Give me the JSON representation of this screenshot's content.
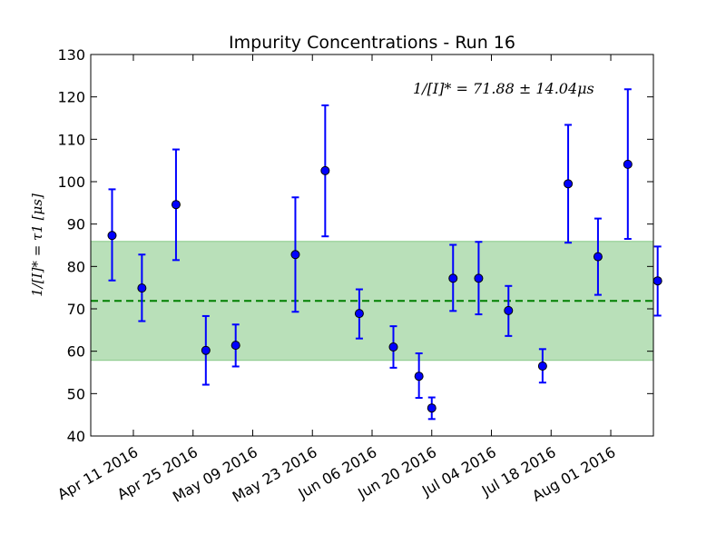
{
  "chart_data": {
    "type": "scatter",
    "title": "Impurity Concentrations - Run 16",
    "ylabel": "1/[I]* = τ1 [μs]",
    "xlabel": "",
    "ylim": [
      40,
      130
    ],
    "xlim": [
      "2016-04-01",
      "2016-08-11"
    ],
    "yticks": [
      40,
      50,
      60,
      70,
      80,
      90,
      100,
      110,
      120,
      130
    ],
    "xticks": [
      {
        "date": "2016-04-11",
        "label": "Apr 11 2016"
      },
      {
        "date": "2016-04-25",
        "label": "Apr 25 2016"
      },
      {
        "date": "2016-05-09",
        "label": "May 09 2016"
      },
      {
        "date": "2016-05-23",
        "label": "May 23 2016"
      },
      {
        "date": "2016-06-06",
        "label": "Jun 06 2016"
      },
      {
        "date": "2016-06-20",
        "label": "Jun 20 2016"
      },
      {
        "date": "2016-07-04",
        "label": "Jul 04 2016"
      },
      {
        "date": "2016-07-18",
        "label": "Jul 18 2016"
      },
      {
        "date": "2016-08-01",
        "label": "Aug 01 2016"
      }
    ],
    "points": [
      {
        "date": "2016-04-06",
        "y": 87.3,
        "lo": 76.7,
        "hi": 98.2
      },
      {
        "date": "2016-04-13",
        "y": 74.9,
        "lo": 67.1,
        "hi": 82.8
      },
      {
        "date": "2016-04-21",
        "y": 94.6,
        "lo": 81.5,
        "hi": 107.6
      },
      {
        "date": "2016-04-28",
        "y": 60.2,
        "lo": 52.1,
        "hi": 68.3
      },
      {
        "date": "2016-05-05",
        "y": 61.4,
        "lo": 56.4,
        "hi": 66.3
      },
      {
        "date": "2016-05-19",
        "y": 82.8,
        "lo": 69.3,
        "hi": 96.3
      },
      {
        "date": "2016-05-26",
        "y": 102.6,
        "lo": 87.1,
        "hi": 118.0
      },
      {
        "date": "2016-06-03",
        "y": 68.9,
        "lo": 63.0,
        "hi": 74.6
      },
      {
        "date": "2016-06-11",
        "y": 61.0,
        "lo": 56.1,
        "hi": 65.9
      },
      {
        "date": "2016-06-17",
        "y": 54.1,
        "lo": 49.0,
        "hi": 59.5
      },
      {
        "date": "2016-06-20",
        "y": 46.6,
        "lo": 44.0,
        "hi": 49.1
      },
      {
        "date": "2016-06-25",
        "y": 77.2,
        "lo": 69.5,
        "hi": 85.1
      },
      {
        "date": "2016-07-01",
        "y": 77.2,
        "lo": 68.7,
        "hi": 85.8
      },
      {
        "date": "2016-07-08",
        "y": 69.6,
        "lo": 63.6,
        "hi": 75.4
      },
      {
        "date": "2016-07-16",
        "y": 56.5,
        "lo": 52.6,
        "hi": 60.5
      },
      {
        "date": "2016-07-22",
        "y": 99.5,
        "lo": 85.6,
        "hi": 113.4
      },
      {
        "date": "2016-07-29",
        "y": 82.3,
        "lo": 73.3,
        "hi": 91.3
      },
      {
        "date": "2016-08-05",
        "y": 104.1,
        "lo": 86.5,
        "hi": 121.8
      },
      {
        "date": "2016-08-12",
        "y": 76.6,
        "lo": 68.4,
        "hi": 84.7
      }
    ],
    "mean": 71.88,
    "std": 14.04,
    "band": [
      57.84,
      85.92
    ],
    "annotation": "1/[I]* = 71.88 ± 14.04μs",
    "grid": false,
    "colors": {
      "points": "#0000ff",
      "mean_line": "#008000",
      "band": "#2ca02c"
    }
  }
}
